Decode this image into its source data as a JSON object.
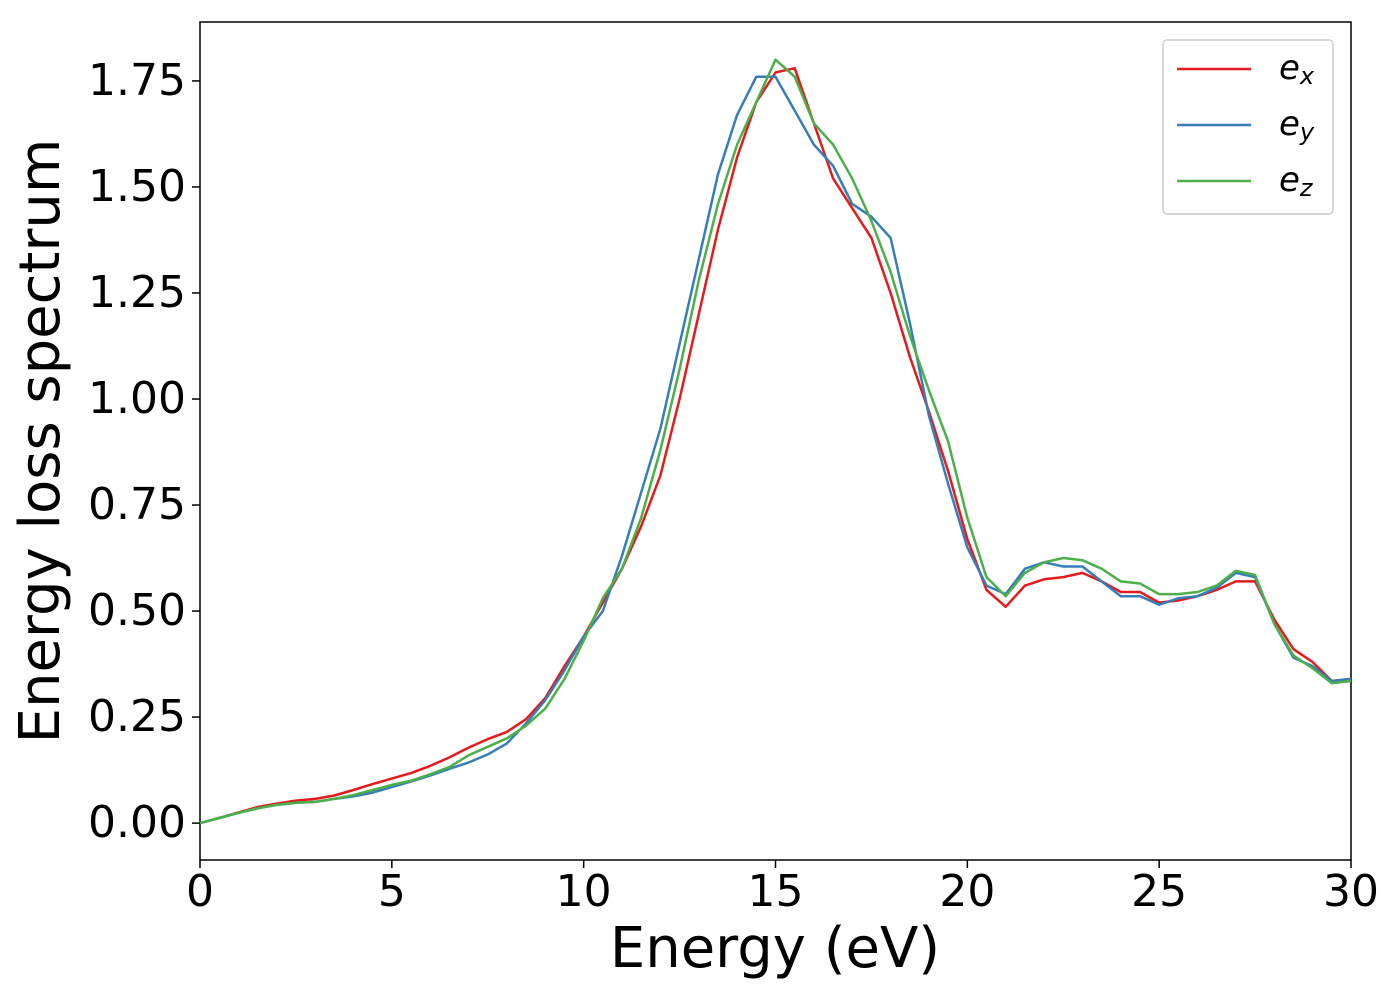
{
  "chart_data": {
    "type": "line",
    "xlabel": "Energy (eV)",
    "ylabel": "Energy loss spectrum",
    "x": [
      0,
      0.5,
      1,
      1.5,
      2,
      2.5,
      3,
      3.5,
      4,
      4.5,
      5,
      5.5,
      6,
      6.5,
      7,
      7.5,
      8,
      8.5,
      9,
      9.5,
      10,
      10.5,
      11,
      11.5,
      12,
      12.5,
      13,
      13.5,
      14,
      14.5,
      15,
      15.5,
      16,
      16.5,
      17,
      17.5,
      18,
      18.5,
      19,
      19.5,
      20,
      20.5,
      21,
      21.5,
      22,
      22.5,
      23,
      23.5,
      24,
      24.5,
      25,
      25.5,
      26,
      26.5,
      27,
      27.5,
      28,
      28.5,
      29,
      29.5,
      30
    ],
    "series": [
      {
        "name": "e_x",
        "color": "#e41a1c",
        "values": [
          0,
          0.012,
          0.025,
          0.038,
          0.046,
          0.053,
          0.057,
          0.065,
          0.078,
          0.092,
          0.105,
          0.118,
          0.135,
          0.155,
          0.178,
          0.198,
          0.215,
          0.245,
          0.295,
          0.37,
          0.44,
          0.52,
          0.6,
          0.7,
          0.82,
          1.0,
          1.2,
          1.4,
          1.57,
          1.7,
          1.77,
          1.78,
          1.65,
          1.52,
          1.45,
          1.38,
          1.25,
          1.1,
          0.97,
          0.83,
          0.67,
          0.55,
          0.51,
          0.56,
          0.575,
          0.58,
          0.59,
          0.57,
          0.545,
          0.545,
          0.52,
          0.525,
          0.535,
          0.55,
          0.57,
          0.57,
          0.48,
          0.41,
          0.38,
          0.335,
          0.34
        ]
      },
      {
        "name": "e_y",
        "color": "#377eb8",
        "values": [
          0,
          0.012,
          0.024,
          0.035,
          0.043,
          0.048,
          0.05,
          0.057,
          0.063,
          0.072,
          0.085,
          0.098,
          0.112,
          0.128,
          0.143,
          0.162,
          0.188,
          0.235,
          0.29,
          0.36,
          0.44,
          0.5,
          0.63,
          0.78,
          0.93,
          1.13,
          1.33,
          1.53,
          1.67,
          1.76,
          1.76,
          1.68,
          1.6,
          1.55,
          1.46,
          1.43,
          1.38,
          1.18,
          0.96,
          0.8,
          0.65,
          0.56,
          0.54,
          0.6,
          0.615,
          0.605,
          0.605,
          0.57,
          0.535,
          0.535,
          0.515,
          0.53,
          0.535,
          0.555,
          0.59,
          0.58,
          0.47,
          0.39,
          0.37,
          0.335,
          0.34
        ]
      },
      {
        "name": "e_z",
        "color": "#4daf4a",
        "values": [
          0,
          0.012,
          0.024,
          0.035,
          0.043,
          0.048,
          0.05,
          0.057,
          0.066,
          0.078,
          0.09,
          0.1,
          0.115,
          0.132,
          0.16,
          0.18,
          0.2,
          0.23,
          0.27,
          0.34,
          0.43,
          0.53,
          0.6,
          0.72,
          0.88,
          1.07,
          1.28,
          1.46,
          1.6,
          1.7,
          1.8,
          1.76,
          1.65,
          1.6,
          1.52,
          1.42,
          1.3,
          1.15,
          1.02,
          0.9,
          0.72,
          0.58,
          0.535,
          0.59,
          0.615,
          0.625,
          0.62,
          0.6,
          0.57,
          0.565,
          0.54,
          0.54,
          0.545,
          0.56,
          0.595,
          0.585,
          0.47,
          0.395,
          0.365,
          0.33,
          0.335
        ]
      }
    ],
    "xlim": [
      0,
      30
    ],
    "ylim": [
      -0.087,
      1.889
    ],
    "xticks": [
      0,
      5,
      10,
      15,
      20,
      25,
      30
    ],
    "yticks": [
      {
        "value": 0,
        "label": "0.00"
      },
      {
        "value": 0.25,
        "label": "0.25"
      },
      {
        "value": 0.5,
        "label": "0.50"
      },
      {
        "value": 0.75,
        "label": "0.75"
      },
      {
        "value": 1,
        "label": "1.00"
      },
      {
        "value": 1.25,
        "label": "1.25"
      },
      {
        "value": 1.5,
        "label": "1.50"
      },
      {
        "value": 1.75,
        "label": "1.75"
      }
    ],
    "legend": "upper right",
    "grid": false
  }
}
